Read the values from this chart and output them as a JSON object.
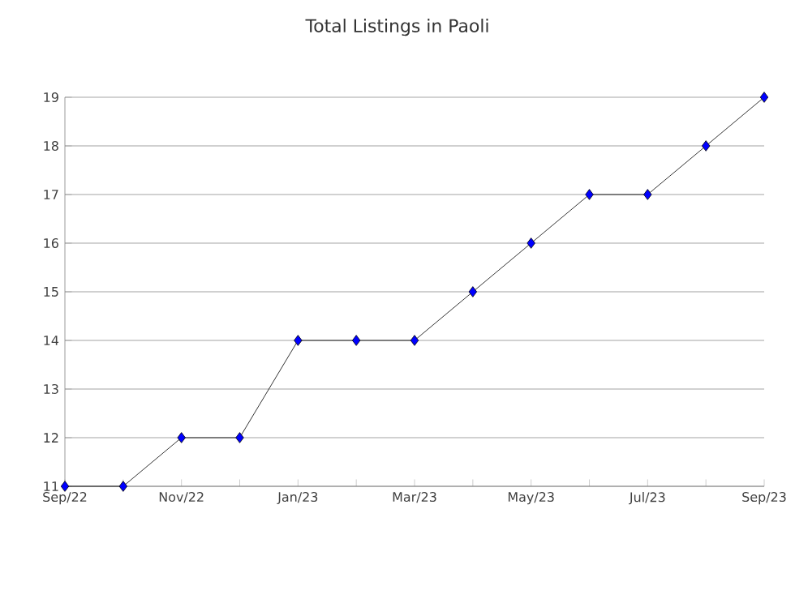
{
  "chart_data": {
    "type": "line",
    "title": "Total Listings in Paoli",
    "categories": [
      "Sep/22",
      null,
      "Nov/22",
      null,
      "Jan/23",
      null,
      "Mar/23",
      null,
      "May/23",
      null,
      "Jul/23",
      null,
      "Sep/23"
    ],
    "series": [
      {
        "color": "#0000ff",
        "values": [
          11,
          11,
          12,
          12,
          14,
          14,
          14,
          15,
          16,
          17,
          17,
          18,
          19
        ]
      }
    ],
    "ylim": [
      11,
      19
    ],
    "yticks": [
      11,
      12,
      13,
      14,
      15,
      16,
      17,
      18,
      19
    ],
    "grid": "y",
    "marker": "diamond",
    "line_style": "solid"
  }
}
